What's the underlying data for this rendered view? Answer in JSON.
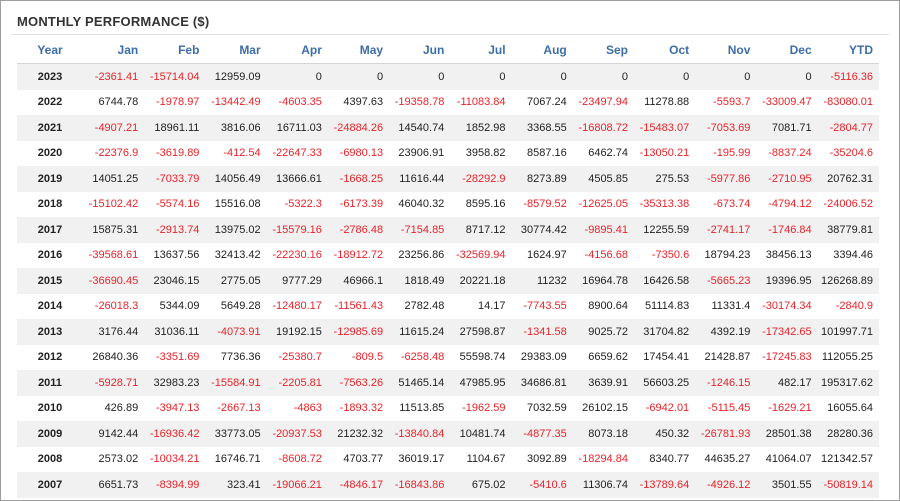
{
  "title": "MONTHLY PERFORMANCE ($)",
  "colors": {
    "header": "#3d6ea8",
    "negative": "#e8232a",
    "stripe": "#f1f1f1"
  },
  "columns": [
    "Year",
    "Jan",
    "Feb",
    "Mar",
    "Apr",
    "May",
    "Jun",
    "Jul",
    "Aug",
    "Sep",
    "Oct",
    "Nov",
    "Dec",
    "YTD"
  ],
  "rows": [
    [
      "2023",
      "-2361.41",
      "-15714.04",
      "12959.09",
      "0",
      "0",
      "0",
      "0",
      "0",
      "0",
      "0",
      "0",
      "0",
      "-5116.36"
    ],
    [
      "2022",
      "6744.78",
      "-1978.97",
      "-13442.49",
      "-4603.35",
      "4397.63",
      "-19358.78",
      "-11083.84",
      "7067.24",
      "-23497.94",
      "11278.88",
      "-5593.7",
      "-33009.47",
      "-83080.01"
    ],
    [
      "2021",
      "-4907.21",
      "18961.11",
      "3816.06",
      "16711.03",
      "-24884.26",
      "14540.74",
      "1852.98",
      "3368.55",
      "-16808.72",
      "-15483.07",
      "-7053.69",
      "7081.71",
      "-2804.77"
    ],
    [
      "2020",
      "-22376.9",
      "-3619.89",
      "-412.54",
      "-22647.33",
      "-6980.13",
      "23906.91",
      "3958.82",
      "8587.16",
      "6462.74",
      "-13050.21",
      "-195.99",
      "-8837.24",
      "-35204.6"
    ],
    [
      "2019",
      "14051.25",
      "-7033.79",
      "14056.49",
      "13666.61",
      "-1668.25",
      "11616.44",
      "-28292.9",
      "8273.89",
      "4505.85",
      "275.53",
      "-5977.86",
      "-2710.95",
      "20762.31"
    ],
    [
      "2018",
      "-15102.42",
      "-5574.16",
      "15516.08",
      "-5322.3",
      "-6173.39",
      "46040.32",
      "8595.16",
      "-8579.52",
      "-12625.05",
      "-35313.38",
      "-673.74",
      "-4794.12",
      "-24006.52"
    ],
    [
      "2017",
      "15875.31",
      "-2913.74",
      "13975.02",
      "-15579.16",
      "-2786.48",
      "-7154.85",
      "8717.12",
      "30774.42",
      "-9895.41",
      "12255.59",
      "-2741.17",
      "-1746.84",
      "38779.81"
    ],
    [
      "2016",
      "-39568.61",
      "13637.56",
      "32413.42",
      "-22230.16",
      "-18912.72",
      "23256.86",
      "-32569.94",
      "1624.97",
      "-4156.68",
      "-7350.6",
      "18794.23",
      "38456.13",
      "3394.46"
    ],
    [
      "2015",
      "-36690.45",
      "23046.15",
      "2775.05",
      "9777.29",
      "46966.1",
      "1818.49",
      "20221.18",
      "11232",
      "16964.78",
      "16426.58",
      "-5665.23",
      "19396.95",
      "126268.89"
    ],
    [
      "2014",
      "-26018.3",
      "5344.09",
      "5649.28",
      "-12480.17",
      "-11561.43",
      "2782.48",
      "14.17",
      "-7743.55",
      "8900.64",
      "51114.83",
      "11331.4",
      "-30174.34",
      "-2840.9"
    ],
    [
      "2013",
      "3176.44",
      "31036.11",
      "-4073.91",
      "19192.15",
      "-12985.69",
      "11615.24",
      "27598.87",
      "-1341.58",
      "9025.72",
      "31704.82",
      "4392.19",
      "-17342.65",
      "101997.71"
    ],
    [
      "2012",
      "26840.36",
      "-3351.69",
      "7736.36",
      "-25380.7",
      "-809.5",
      "-6258.48",
      "55598.74",
      "29383.09",
      "6659.62",
      "17454.41",
      "21428.87",
      "-17245.83",
      "112055.25"
    ],
    [
      "2011",
      "-5928.71",
      "32983.23",
      "-15584.91",
      "-2205.81",
      "-7563.26",
      "51465.14",
      "47985.95",
      "34686.81",
      "3639.91",
      "56603.25",
      "-1246.15",
      "482.17",
      "195317.62"
    ],
    [
      "2010",
      "426.89",
      "-3947.13",
      "-2667.13",
      "-4863",
      "-1893.32",
      "11513.85",
      "-1962.59",
      "7032.59",
      "26102.15",
      "-6942.01",
      "-5115.45",
      "-1629.21",
      "16055.64"
    ],
    [
      "2009",
      "9142.44",
      "-16936.42",
      "33773.05",
      "-20937.53",
      "21232.32",
      "-13840.84",
      "10481.74",
      "-4877.35",
      "8073.18",
      "450.32",
      "-26781.93",
      "28501.38",
      "28280.36"
    ],
    [
      "2008",
      "2573.02",
      "-10034.21",
      "16746.71",
      "-8608.72",
      "4703.77",
      "36019.17",
      "1104.67",
      "3092.89",
      "-18294.84",
      "8340.77",
      "44635.27",
      "41064.07",
      "121342.57"
    ],
    [
      "2007",
      "6651.73",
      "-8394.99",
      "323.41",
      "-19066.21",
      "-4846.17",
      "-16843.86",
      "675.02",
      "-5410.6",
      "11306.74",
      "-13789.64",
      "-4926.12",
      "3501.55",
      "-50819.14"
    ]
  ]
}
